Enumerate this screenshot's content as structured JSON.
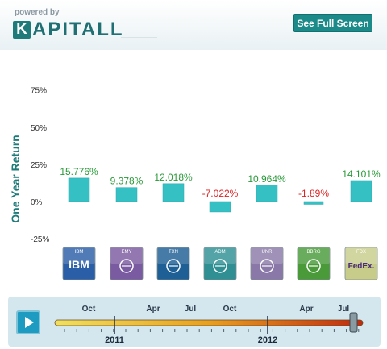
{
  "header": {
    "powered_by": "powered by",
    "logo_initial": "K",
    "logo_rest": "APITALL",
    "fullscreen_label": "See Full Screen"
  },
  "colors": {
    "accent": "#1d8a8a",
    "positive": "#2a9a3a",
    "negative": "#dd2222",
    "bar": "#35c0c4"
  },
  "chart_data": {
    "type": "bar",
    "ylabel": "One Year Return",
    "ylim": [
      -25,
      75
    ],
    "yticks": [
      -25,
      0,
      25,
      50,
      75
    ],
    "grid": false,
    "categories": [
      "IBM",
      "EMY",
      "TXN",
      "ADM",
      "UNR",
      "BBRG",
      "FDX"
    ],
    "values": [
      15.776,
      9.378,
      12.018,
      -7.022,
      10.964,
      -1.89,
      14.101
    ],
    "value_labels": [
      "15.776%",
      "9.378%",
      "12.018%",
      "-7.022%",
      "10.964%",
      "-1.89%",
      "14.101%"
    ],
    "ticker_tiles": [
      {
        "ticker": "IBM",
        "logo_text": "IBM",
        "color": "#2a5fa8",
        "icon": "ibm-logo-icon"
      },
      {
        "ticker": "EMY",
        "logo_text": "",
        "color": "#7a5aa0",
        "icon": "emerson-logo-icon"
      },
      {
        "ticker": "TXN",
        "logo_text": "",
        "color": "#1e5f95",
        "icon": "texas-instruments-logo-icon"
      },
      {
        "ticker": "ADM",
        "logo_text": "",
        "color": "#2f8f93",
        "icon": "adm-logo-icon"
      },
      {
        "ticker": "UNR",
        "logo_text": "",
        "color": "#8a79a8",
        "icon": "unr-logo-icon"
      },
      {
        "ticker": "BBRG",
        "logo_text": "",
        "color": "#4a9a3a",
        "icon": "building-logo-icon"
      },
      {
        "ticker": "FDX",
        "logo_text": "FedEx.",
        "color": "#c7cc8a",
        "icon": "fedex-logo-icon"
      }
    ]
  },
  "timeline": {
    "months": [
      "Oct",
      "Apr",
      "Jul",
      "Oct",
      "Apr",
      "Jul"
    ],
    "years": [
      "2011",
      "2012"
    ],
    "position": 1.0
  }
}
